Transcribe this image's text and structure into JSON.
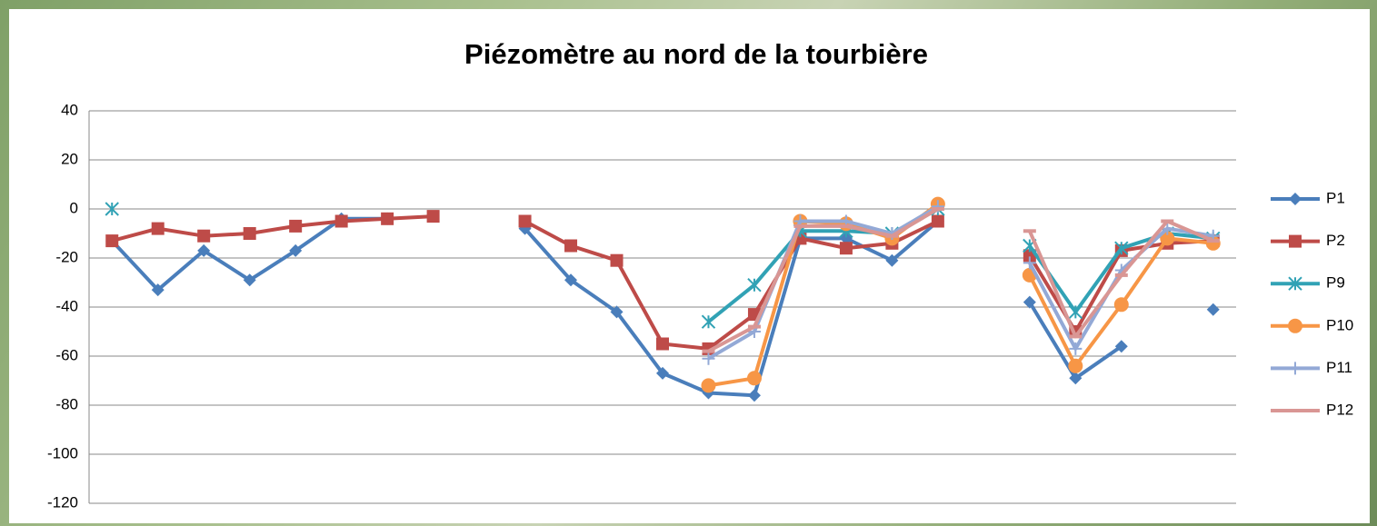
{
  "chart_data": {
    "type": "line",
    "title": "Piézomètre au nord de la tourbière",
    "categories": [
      null,
      null,
      null,
      null,
      null,
      null,
      null,
      null,
      null,
      null,
      null,
      null,
      null,
      null,
      null,
      null,
      null,
      null,
      null,
      null,
      null,
      null,
      null,
      null,
      null
    ],
    "ylim": [
      -120,
      40
    ],
    "yticks": [
      -120,
      -100,
      -80,
      -60,
      -40,
      -20,
      0,
      20,
      40
    ],
    "grid": true,
    "legend": "right",
    "series": [
      {
        "name": "P1",
        "color": "#4a7ebb",
        "marker": "diamond",
        "values": [
          -13,
          -33,
          -17,
          -29,
          -17,
          -4,
          -4,
          null,
          null,
          -8,
          -29,
          -42,
          -67,
          -75,
          -76,
          -12,
          -12,
          -21,
          -5,
          null,
          -38,
          -69,
          -56,
          null,
          -41
        ]
      },
      {
        "name": "P2",
        "color": "#be4b48",
        "marker": "square",
        "values": [
          -13,
          -8,
          -11,
          -10,
          -7,
          -5,
          -4,
          -3,
          null,
          -5,
          -15,
          -21,
          -55,
          -57,
          -43,
          -12,
          -16,
          -14,
          -5,
          null,
          -19,
          -50,
          -17,
          -14,
          -13
        ]
      },
      {
        "name": "P9",
        "color": "#31a2b5",
        "marker": "asterisk",
        "values": [
          0,
          null,
          null,
          null,
          null,
          null,
          null,
          null,
          null,
          null,
          null,
          null,
          null,
          -46,
          -31,
          -9,
          -9,
          -10,
          0,
          null,
          -15,
          -42,
          -16,
          -10,
          -12
        ]
      },
      {
        "name": "P10",
        "color": "#f79646",
        "marker": "circle",
        "values": [
          null,
          null,
          null,
          null,
          null,
          null,
          null,
          null,
          null,
          null,
          null,
          null,
          null,
          -72,
          -69,
          -5,
          -6,
          -12,
          2,
          null,
          -27,
          -64,
          -39,
          -12,
          -14
        ]
      },
      {
        "name": "P11",
        "color": "#93a9d6",
        "marker": "plus",
        "values": [
          null,
          null,
          null,
          null,
          null,
          null,
          null,
          null,
          null,
          null,
          null,
          null,
          null,
          -61,
          -50,
          -5,
          -5,
          -10,
          1,
          null,
          -22,
          -57,
          -25,
          -8,
          -11
        ]
      },
      {
        "name": "P12",
        "color": "#d99694",
        "marker": "dash",
        "values": [
          null,
          null,
          null,
          null,
          null,
          null,
          null,
          null,
          null,
          null,
          null,
          null,
          null,
          -58,
          -48,
          -7,
          -7,
          -11,
          0,
          null,
          -9,
          -52,
          -27,
          -5,
          -13
        ]
      }
    ]
  }
}
